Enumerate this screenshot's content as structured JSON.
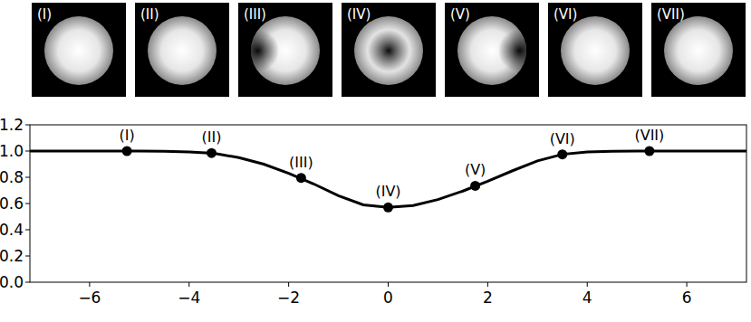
{
  "chart_data": {
    "type": "line",
    "x": [
      -7.2,
      -7,
      -6.5,
      -6,
      -5.5,
      -5,
      -4.5,
      -4,
      -3.5,
      -3,
      -2.5,
      -2,
      -1.5,
      -1,
      -0.5,
      0,
      0.5,
      1,
      1.5,
      2,
      2.5,
      3,
      3.5,
      4,
      4.5,
      5,
      5.5,
      6,
      6.5,
      7,
      7.2
    ],
    "series": [
      {
        "type": "line",
        "color": "#000000",
        "line_style": "solid",
        "values": [
          1,
          1,
          1,
          1,
          1,
          1,
          0.998,
          0.993,
          0.983,
          0.95,
          0.9,
          0.83,
          0.75,
          0.66,
          0.59,
          0.57,
          0.585,
          0.63,
          0.695,
          0.77,
          0.85,
          0.925,
          0.975,
          0.993,
          0.999,
          1,
          1,
          1,
          1,
          1,
          1
        ]
      },
      {
        "type": "scatter",
        "color": "#000000",
        "marker": "circle",
        "x": [
          -5.25,
          -3.55,
          -1.75,
          0,
          1.75,
          3.5,
          5.25
        ],
        "values": [
          1,
          0.985,
          0.795,
          0.57,
          0.735,
          0.975,
          1
        ],
        "labels": [
          "(I)",
          "(II)",
          "(III)",
          "(IV)",
          "(V)",
          "(VI)",
          "(VII)"
        ]
      }
    ],
    "xlim": [
      -7.2,
      7.2
    ],
    "ylim": [
      0,
      1.2
    ],
    "xticks": [
      {
        "value": -6,
        "label": "−6"
      },
      {
        "value": -4,
        "label": "−4"
      },
      {
        "value": -2,
        "label": "−2"
      },
      0,
      2,
      4,
      6
    ],
    "yticks": [
      {
        "value": 0,
        "label": "0.0"
      },
      0.2,
      0.4,
      0.6,
      0.8,
      {
        "value": 1,
        "label": "1.0"
      },
      1.2
    ],
    "grid": false
  }
}
